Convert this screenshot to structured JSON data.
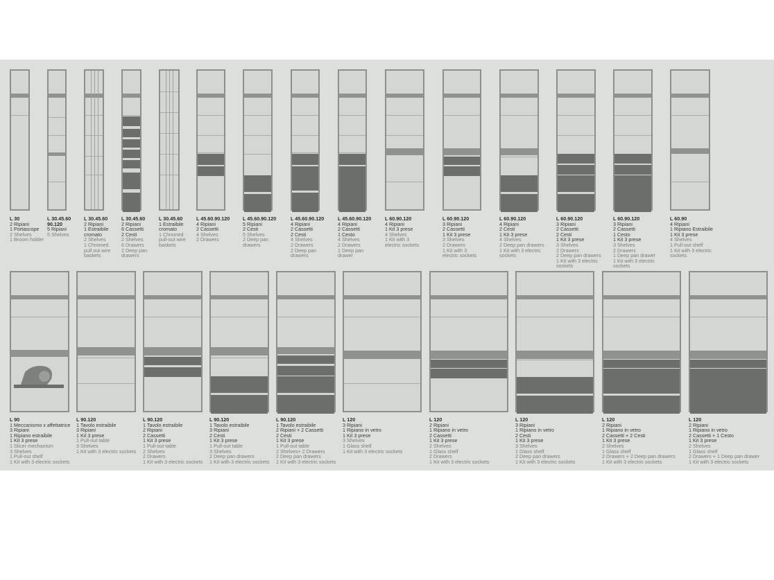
{
  "cabinets": [
    {
      "size": "L 30",
      "lines_it": [
        "2 Ripiani",
        "1 Portascope"
      ],
      "lines_en": [
        "2 Shelves",
        "1 Broom holder"
      ],
      "icon": "broom-holder"
    },
    {
      "size": "L 30.45.60\n90.120",
      "lines_it": [
        "5 Ripiani"
      ],
      "lines_en": [
        "5 Shelves"
      ],
      "icon": "shelves"
    },
    {
      "size": "L 30.45.60",
      "lines_it": [
        "2 Ripiani",
        "1 Estraibile",
        "cromato"
      ],
      "lines_en": [
        "2 Shelves",
        "1 Chromed",
        "pull out wire",
        "baskets"
      ],
      "icon": "chromed-basket"
    },
    {
      "size": "L 30.45.60",
      "lines_it": [
        "2 Ripiani",
        "6 Cassetti",
        "2 Cesti"
      ],
      "lines_en": [
        "2 Shelves",
        "6 Drawers",
        "2 Deep pan",
        "drawers"
      ],
      "icon": "drawers"
    },
    {
      "size": "L 30.45.60",
      "lines_it": [
        "1 Estraibile",
        "cromato"
      ],
      "lines_en": [
        "1 Chromed",
        "pull-out wire",
        "baskets"
      ],
      "icon": "chromed-basket"
    },
    {
      "size": "L 45.60.90.120",
      "lines_it": [
        "4 Ripiani",
        "2 Cassetti"
      ],
      "lines_en": [
        "4 Shelves",
        "2 Drawers"
      ],
      "icon": "drawers"
    },
    {
      "size": "L 45.60.90.120",
      "lines_it": [
        "5 Ripiani",
        "2 Cesti"
      ],
      "lines_en": [
        "5 Shelves",
        "2 Deep pan",
        "drawers"
      ],
      "icon": "deep-pan"
    },
    {
      "size": "L 45.60.90.120",
      "lines_it": [
        "4 Ripiani",
        "2 Cassetti",
        "2 Cesti"
      ],
      "lines_en": [
        "4 Shelves",
        "2 Drawers",
        "2 Deep pan",
        "drawers"
      ],
      "icon": "drawers"
    },
    {
      "size": "L 45.60.90.120",
      "lines_it": [
        "4 Ripiani",
        "2 Cassetti",
        "1 Cesto"
      ],
      "lines_en": [
        "4 Shelves",
        "2 Drawers",
        "1 Deep pan",
        "drawer"
      ],
      "icon": "drawers"
    },
    {
      "size": "L 60.90.120",
      "lines_it": [
        "4 Ripiani",
        "1 Kit 3 prese"
      ],
      "lines_en": [
        "4 Shelves",
        "1 Kit with 3",
        "electric sockets"
      ],
      "icon": "sockets"
    },
    {
      "size": "L 60.90.120",
      "lines_it": [
        "3 Ripiani",
        "2 Cassetti",
        "1 Kit 3 prese"
      ],
      "lines_en": [
        "3 Shelves",
        "2 Drawers",
        "1 Kit with 3",
        "electric sockets"
      ],
      "icon": "drawers"
    },
    {
      "size": "L 60.90.120",
      "lines_it": [
        "4 Ripiani",
        "2 Cesti",
        "1 Kit 3 prese"
      ],
      "lines_en": [
        "4 Shelves",
        "2 Deep pan drawers",
        "1 Kit with 3 electric",
        "sockets"
      ],
      "icon": "deep-pan"
    },
    {
      "size": "L 60.90.120",
      "lines_it": [
        "3 Ripiani",
        "2 Cassetti",
        "2 Cesti",
        "1 Kit 3 prese"
      ],
      "lines_en": [
        "3 Shelves",
        "2 Drawers",
        "2 Deep pan drawers",
        "1 Kit with 3 electric",
        "sockets"
      ],
      "icon": "drawers"
    },
    {
      "size": "L 60.90.120",
      "lines_it": [
        "3 Ripiani",
        "2 Cassetti",
        "1 Cesto",
        "1 Kit 3 prese"
      ],
      "lines_en": [
        "3 Shelves",
        "2 Drawers",
        "1 Deep pan drawer",
        "1 Kit with 3 electric",
        "sockets"
      ],
      "icon": "drawers"
    },
    {
      "size": "L 60.90",
      "lines_it": [
        "4 Ripiani",
        "1 Ripiano Estraibile",
        "1 Kit 3 prese"
      ],
      "lines_en": [
        "4 Shelves",
        "1 Pull-out shelf",
        "1 Kit with 3 electric",
        "sockets"
      ],
      "icon": "pull-out-shelf"
    },
    {
      "size": "L 90",
      "lines_it": [
        "1 Meccanismo x affettatrice",
        "3 Ripiani",
        "1 Ripiano estraibile",
        "1 Kit 3 prese"
      ],
      "lines_en": [
        "1 Slicer mechanism",
        "3 Shelves",
        "1 Pull-out shelf",
        "1 Kit with 3 electric sockets"
      ],
      "icon": "slicer"
    },
    {
      "size": "L 90.120",
      "lines_it": [
        "1 Tavolo estraibile",
        "3 Ripiani",
        "1 Kit 3 prese"
      ],
      "lines_en": [
        "1 Pull-out table",
        "3 Shelves",
        "1 Kit with 3 electric sockets"
      ],
      "icon": "pull-out-table"
    },
    {
      "size": "L 90.120",
      "lines_it": [
        "1 Tavolo estraibile",
        "2 Ripiani",
        "2 Cassetti",
        "1 Kit 3 prese"
      ],
      "lines_en": [
        "1 Pull-out table",
        "2 Shelves",
        "2 Drawers",
        "1 Kit with 3 electric sockets"
      ],
      "icon": "pull-out-table"
    },
    {
      "size": "L 90.120",
      "lines_it": [
        "1 Tavolo estraibile",
        "3 Ripiani",
        "2 Cesti",
        "1 Kit 3 prese"
      ],
      "lines_en": [
        "1 Pull-out table",
        "3 Shelves",
        "2 Deep pan drawers",
        "1 Kit with 3 electric sockets"
      ],
      "icon": "pull-out-table"
    },
    {
      "size": "L 90.120",
      "lines_it": [
        "1 Tavolo estraibile",
        "2 Ripiani + 2 Cassetti",
        "2 Cesti",
        "1 Kit 3 prese"
      ],
      "lines_en": [
        "1 Pull-out table",
        "2 Shelves+ 2 Drawers",
        "2 Deep pan drawers",
        "1 Kit with 3 electric sockets"
      ],
      "icon": "pull-out-table"
    },
    {
      "size": "L 120",
      "lines_it": [
        "3 Ripiani",
        "1 Ripiano in vetro",
        "1 Kit 3 prese"
      ],
      "lines_en": [
        "3 Shelves",
        "1 Glass shelf",
        "1 Kit with 3 electric sockets"
      ],
      "icon": "glass-shelf"
    },
    {
      "size": "L 120",
      "lines_it": [
        "2 Ripiani",
        "1 Ripiano in vetro",
        "2 Cassetti",
        "1 Kit 3 prese"
      ],
      "lines_en": [
        "2 Shelves",
        "1 Glass shelf",
        "2 Drawers",
        "1 Kit with 3 electric sockets"
      ],
      "icon": "glass-shelf"
    },
    {
      "size": "L 120",
      "lines_it": [
        "3 Ripiani",
        "1 Ripiano in vetro",
        "2 Cesti",
        "1 Kit 3 prese"
      ],
      "lines_en": [
        "3 Shelves",
        "1 Glass shelf",
        "2 Deep pan drawers",
        "1 Kit with 3 electric sockets"
      ],
      "icon": "glass-shelf"
    },
    {
      "size": "L 120",
      "lines_it": [
        "2 Ripiani",
        "1 Ripiano in vetro",
        "2 Cassetti + 2 Cesti",
        "1 Kit 3 prese"
      ],
      "lines_en": [
        "2 Shelves",
        "1 Glass shelf",
        "2 Drawers + 2 Deep pan drawers",
        "1 Kit with 3 electric sockets"
      ],
      "icon": "glass-shelf"
    },
    {
      "size": "L 120",
      "lines_it": [
        "2 Ripiani",
        "1 Ripiano in vetro",
        "2 Cassetti + 1 Cesto",
        "1 Kit 3 prese"
      ],
      "lines_en": [
        "2 Shelves",
        "1 Glass shelf",
        "2 Drawers + 1 Deep pan drawer",
        "1 Kit with 3 electric sockets"
      ],
      "icon": "glass-shelf"
    }
  ]
}
